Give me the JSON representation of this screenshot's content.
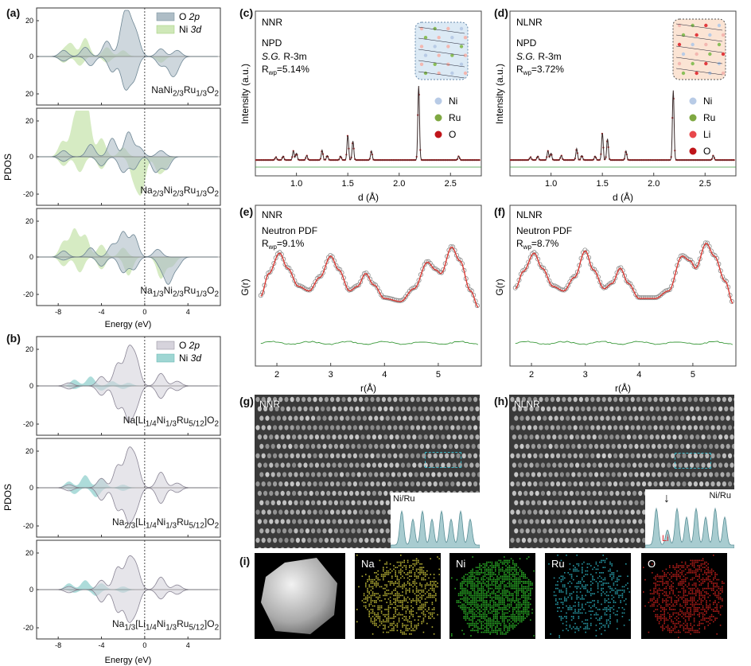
{
  "panel_labels": {
    "a": "(a)",
    "b": "(b)",
    "c": "(c)",
    "d": "(d)",
    "e": "(e)",
    "f": "(f)",
    "g": "(g)",
    "h": "(h)",
    "i": "(i)"
  },
  "pdos_a": {
    "ylabel": "PDOS",
    "xlabel": "Energy (eV)",
    "legend": [
      "O 2p",
      "Ni 3d"
    ],
    "colors": {
      "o2p": "#aebdc6",
      "ni3d": "#cfe8b8",
      "o2p_line": "#6f8795",
      "ni3d_line": "#9acb74"
    },
    "xticks": [
      "-8",
      "-4",
      "0",
      "4"
    ],
    "subpanels": [
      {
        "formula_html": "NaNi<sub>2/3</sub>Ru<sub>1/3</sub>O<sub>2</sub>",
        "yticks": [
          "20",
          "0",
          "20"
        ]
      },
      {
        "formula_html": "Na<sub>2/3</sub>Ni<sub>2/3</sub>Ru<sub>1/3</sub>O<sub>2</sub>",
        "yticks": [
          "20",
          "0",
          "-20"
        ]
      },
      {
        "formula_html": "Na<sub>1/3</sub>Ni<sub>2/3</sub>Ru<sub>1/3</sub>O<sub>2</sub>",
        "yticks": [
          "20",
          "0",
          "-20"
        ]
      }
    ]
  },
  "pdos_b": {
    "ylabel": "PDOS",
    "xlabel": "Energy (eV)",
    "legend": [
      "O 2p",
      "Ni 3d"
    ],
    "colors": {
      "o2p": "#d6d3dc",
      "ni3d": "#9fd6d3",
      "o2p_line": "#8a8595",
      "ni3d_line": "#5fb3ad"
    },
    "xticks": [
      "-8",
      "-4",
      "0",
      "4"
    ],
    "subpanels": [
      {
        "formula_html": "Na[Li<sub>1/4</sub>Ni<sub>1/3</sub>Ru<sub>5/12</sub>]O<sub>2</sub>",
        "yticks": [
          "20",
          "0",
          "-20"
        ]
      },
      {
        "formula_html": "Na<sub>2/3</sub>[Li<sub>1/4</sub>Ni<sub>1/3</sub>Ru<sub>5/12</sub>]O<sub>2</sub>",
        "yticks": [
          "20",
          "0",
          "-20"
        ]
      },
      {
        "formula_html": "Na<sub>1/3</sub>[Li<sub>1/4</sub>Ni<sub>1/3</sub>Ru<sub>5/12</sub>]O<sub>2</sub>",
        "yticks": [
          "20",
          "0",
          "-20"
        ]
      }
    ]
  },
  "npd_c": {
    "name": "NNR",
    "method": "NPD",
    "sg_label": "S.G.",
    "sg_value": " R-3m",
    "rwp_value": "=5.14%",
    "ylabel": "Intensity (a.u.)",
    "xlabel": "d (Å)",
    "xticks": [
      "1.0",
      "1.5",
      "2.0",
      "2.5"
    ],
    "legend": [
      {
        "label": "Ni",
        "color": "#b8cbe6"
      },
      {
        "label": "Ru",
        "color": "#7fa842"
      },
      {
        "label": "O",
        "color": "#c0151a"
      }
    ]
  },
  "npd_d": {
    "name": "NLNR",
    "method": "NPD",
    "sg_label": "S.G.",
    "sg_value": " R-3m",
    "rwp_value": "=3.72%",
    "ylabel": "Intensity (a.u.)",
    "xlabel": "d (Å)",
    "xticks": [
      "1.0",
      "1.5",
      "2.0",
      "2.5"
    ],
    "legend": [
      {
        "label": "Ni",
        "color": "#b8cbe6"
      },
      {
        "label": "Ru",
        "color": "#7fa842"
      },
      {
        "label": "Li",
        "color": "#e8474b"
      },
      {
        "label": "O",
        "color": "#c0151a"
      }
    ]
  },
  "pdf_e": {
    "name": "NNR",
    "method": "Neutron PDF",
    "rwp_value": "=9.1%",
    "ylabel": "G(r)",
    "xlabel": "r(Å)",
    "xticks": [
      "2",
      "3",
      "4",
      "5"
    ]
  },
  "pdf_f": {
    "name": "NLNR",
    "method": "Neutron PDF",
    "rwp_value": "=8.7%",
    "ylabel": "G(r)",
    "xlabel": "r(Å)",
    "xticks": [
      "2",
      "3",
      "4",
      "5"
    ]
  },
  "stem_g": {
    "name": "NNR",
    "profile_label": "Ni/Ru"
  },
  "stem_h": {
    "name": "NLNR",
    "profile_label": "Ni/Ru",
    "marker_label": "Li"
  },
  "eds_i": {
    "maps": [
      {
        "label": "",
        "color": ""
      },
      {
        "label": "Na",
        "color": "#c9c23a"
      },
      {
        "label": "Ni",
        "color": "#2fbf2a"
      },
      {
        "label": "Ru",
        "color": "#2aa6b4"
      },
      {
        "label": "O",
        "color": "#c4201c"
      }
    ]
  },
  "chart_data": [
    {
      "type": "area",
      "id": "a",
      "xlabel": "Energy (eV)",
      "ylabel": "PDOS",
      "xlim": [
        -10,
        7
      ],
      "series": [
        {
          "name": "O 2p"
        },
        {
          "name": "Ni 3d"
        }
      ],
      "peaks": [
        {
          "o2p_up": [
            [
              -7.5,
              4
            ],
            [
              -5.5,
              6
            ],
            [
              -3.5,
              10
            ],
            [
              -2,
              18
            ],
            [
              -1.5,
              20
            ],
            [
              -0.8,
              14
            ],
            [
              1.5,
              5
            ],
            [
              3,
              4
            ]
          ],
          "ni3d_up": [
            [
              -7.5,
              4
            ],
            [
              -6.8,
              8
            ],
            [
              -5.5,
              12
            ],
            [
              -3.5,
              6
            ],
            [
              -2,
              4
            ]
          ],
          "o2p_dn": [
            [
              -7.5,
              -3
            ],
            [
              -5,
              -6
            ],
            [
              -3,
              -10
            ],
            [
              -1.8,
              -20
            ],
            [
              -1,
              -14
            ],
            [
              1.5,
              -6
            ],
            [
              2.5,
              -10
            ],
            [
              3,
              -6
            ]
          ],
          "ni3d_dn": [
            [
              -7.5,
              -4
            ],
            [
              -6,
              -6
            ],
            [
              -3.5,
              -4
            ],
            [
              1.5,
              -4
            ]
          ]
        },
        {
          "o2p_up": [
            [
              -7.5,
              4
            ],
            [
              -5,
              8
            ],
            [
              -3,
              12
            ],
            [
              -1.5,
              16
            ],
            [
              -0.5,
              6
            ],
            [
              1.5,
              4
            ]
          ],
          "ni3d_up": [
            [
              -7.6,
              10
            ],
            [
              -6.5,
              22
            ],
            [
              -5.8,
              28
            ],
            [
              -5.3,
              26
            ],
            [
              -4,
              12
            ],
            [
              -2,
              6
            ]
          ],
          "o2p_dn": [
            [
              -7.5,
              -3
            ],
            [
              -4,
              -6
            ],
            [
              -2,
              -10
            ],
            [
              -1,
              -8
            ],
            [
              1,
              -10
            ],
            [
              2,
              -8
            ]
          ],
          "ni3d_dn": [
            [
              -7.5,
              -6
            ],
            [
              -6,
              -10
            ],
            [
              -4,
              -8
            ],
            [
              -1,
              -14
            ],
            [
              -0.3,
              -22
            ],
            [
              1.3,
              -10
            ],
            [
              2,
              -6
            ]
          ]
        },
        {
          "o2p_up": [
            [
              -7.5,
              4
            ],
            [
              -5,
              6
            ],
            [
              -3,
              8
            ],
            [
              -2,
              16
            ],
            [
              -1,
              14
            ],
            [
              1.2,
              5
            ]
          ],
          "ni3d_up": [
            [
              -7.5,
              10
            ],
            [
              -6.5,
              18
            ],
            [
              -5.5,
              14
            ],
            [
              -4,
              8
            ],
            [
              -2,
              6
            ]
          ],
          "o2p_dn": [
            [
              -7.5,
              -2
            ],
            [
              -4,
              -6
            ],
            [
              -2,
              -10
            ],
            [
              -1,
              -8
            ],
            [
              1.5,
              -6
            ],
            [
              2.2,
              -16
            ],
            [
              3,
              -6
            ]
          ],
          "ni3d_dn": [
            [
              -7.5,
              -6
            ],
            [
              -6,
              -10
            ],
            [
              -4,
              -8
            ],
            [
              -1.5,
              -12
            ],
            [
              1.5,
              -14
            ],
            [
              2.5,
              -6
            ]
          ]
        }
      ]
    },
    {
      "type": "area",
      "id": "b",
      "xlabel": "Energy (eV)",
      "ylabel": "PDOS",
      "xlim": [
        -10,
        7
      ],
      "series": [
        {
          "name": "O 2p"
        },
        {
          "name": "Ni 3d"
        }
      ],
      "peaks": [
        {
          "o2p_up": [
            [
              -7,
              2
            ],
            [
              -4,
              6
            ],
            [
              -2.5,
              14
            ],
            [
              -1.5,
              22
            ],
            [
              -0.8,
              16
            ],
            [
              1.5,
              8
            ],
            [
              3,
              3
            ]
          ],
          "ni3d_up": [
            [
              -6.5,
              4
            ],
            [
              -5,
              6
            ],
            [
              -3,
              3
            ],
            [
              -1.5,
              2
            ]
          ],
          "o2p_dn": [
            [
              -7,
              -2
            ],
            [
              -4,
              -6
            ],
            [
              -2.5,
              -14
            ],
            [
              -1.5,
              -20
            ],
            [
              -0.8,
              -12
            ],
            [
              1.5,
              -8
            ],
            [
              3,
              -3
            ]
          ],
          "ni3d_dn": [
            [
              -6.5,
              -2
            ],
            [
              -4,
              -3
            ],
            [
              -2,
              -2
            ]
          ]
        },
        {
          "o2p_up": [
            [
              -7,
              2
            ],
            [
              -4,
              6
            ],
            [
              -2.5,
              14
            ],
            [
              -1.5,
              22
            ],
            [
              -0.8,
              16
            ],
            [
              1.5,
              10
            ],
            [
              3,
              3
            ]
          ],
          "ni3d_up": [
            [
              -7,
              4
            ],
            [
              -5.5,
              8
            ],
            [
              -4,
              6
            ],
            [
              -2,
              2
            ]
          ],
          "o2p_dn": [
            [
              -7,
              -2
            ],
            [
              -4,
              -8
            ],
            [
              -2.5,
              -14
            ],
            [
              -1.5,
              -20
            ],
            [
              -0.8,
              -12
            ],
            [
              1.5,
              -10
            ],
            [
              3,
              -3
            ]
          ],
          "ni3d_dn": [
            [
              -6.5,
              -4
            ],
            [
              -4.5,
              -6
            ],
            [
              -2,
              -2
            ]
          ]
        },
        {
          "o2p_up": [
            [
              -7,
              2
            ],
            [
              -4,
              6
            ],
            [
              -2.5,
              14
            ],
            [
              -1.5,
              18
            ],
            [
              -0.8,
              14
            ],
            [
              1.5,
              8
            ],
            [
              3,
              3
            ]
          ],
          "ni3d_up": [
            [
              -7,
              4
            ],
            [
              -5.5,
              6
            ],
            [
              -4,
              4
            ],
            [
              -2,
              2
            ]
          ],
          "o2p_dn": [
            [
              -7,
              -2
            ],
            [
              -4,
              -8
            ],
            [
              -2.5,
              -14
            ],
            [
              -1.5,
              -18
            ],
            [
              -0.8,
              -12
            ],
            [
              1.5,
              -6
            ],
            [
              3,
              -3
            ]
          ],
          "ni3d_dn": [
            [
              -6.5,
              -2
            ],
            [
              -4.5,
              -4
            ],
            [
              -2,
              -2
            ]
          ]
        }
      ]
    },
    {
      "type": "line",
      "id": "c",
      "xlabel": "d (Å)",
      "ylabel": "Intensity (a.u.)",
      "xlim": [
        0.6,
        2.8
      ],
      "peaks": [
        [
          0.8,
          0.04
        ],
        [
          0.87,
          0.05
        ],
        [
          0.97,
          0.12
        ],
        [
          1.0,
          0.09
        ],
        [
          1.1,
          0.06
        ],
        [
          1.25,
          0.13
        ],
        [
          1.3,
          0.06
        ],
        [
          1.43,
          0.05
        ],
        [
          1.5,
          0.33
        ],
        [
          1.55,
          0.25
        ],
        [
          1.73,
          0.12
        ],
        [
          2.19,
          0.98
        ],
        [
          2.58,
          0.05
        ]
      ]
    },
    {
      "type": "line",
      "id": "d",
      "xlabel": "d (Å)",
      "ylabel": "Intensity (a.u.)",
      "xlim": [
        0.6,
        2.8
      ],
      "peaks": [
        [
          0.8,
          0.04
        ],
        [
          0.87,
          0.05
        ],
        [
          0.97,
          0.12
        ],
        [
          1.0,
          0.09
        ],
        [
          1.1,
          0.06
        ],
        [
          1.25,
          0.15
        ],
        [
          1.3,
          0.06
        ],
        [
          1.43,
          0.05
        ],
        [
          1.5,
          0.36
        ],
        [
          1.55,
          0.28
        ],
        [
          1.73,
          0.12
        ],
        [
          2.19,
          0.92
        ],
        [
          2.58,
          0.06
        ]
      ]
    },
    {
      "type": "line",
      "id": "e",
      "xlabel": "r(Å)",
      "ylabel": "G(r)",
      "xlim": [
        1.6,
        5.8
      ],
      "obs": [
        [
          1.7,
          0.25
        ],
        [
          1.85,
          0.55
        ],
        [
          2.05,
          0.82
        ],
        [
          2.2,
          0.62
        ],
        [
          2.4,
          0.38
        ],
        [
          2.6,
          0.32
        ],
        [
          2.8,
          0.5
        ],
        [
          3.0,
          0.78
        ],
        [
          3.15,
          0.6
        ],
        [
          3.35,
          0.32
        ],
        [
          3.5,
          0.38
        ],
        [
          3.65,
          0.55
        ],
        [
          3.8,
          0.4
        ],
        [
          4.0,
          0.22
        ],
        [
          4.3,
          0.18
        ],
        [
          4.55,
          0.35
        ],
        [
          4.8,
          0.7
        ],
        [
          4.95,
          0.6
        ],
        [
          5.05,
          0.55
        ],
        [
          5.25,
          0.9
        ],
        [
          5.4,
          0.72
        ],
        [
          5.6,
          0.32
        ],
        [
          5.75,
          0.1
        ]
      ],
      "diff_offset": -0.05
    },
    {
      "type": "line",
      "id": "f",
      "xlabel": "r(Å)",
      "ylabel": "G(r)",
      "xlim": [
        1.6,
        5.8
      ],
      "obs": [
        [
          1.7,
          0.35
        ],
        [
          1.85,
          0.58
        ],
        [
          2.05,
          0.82
        ],
        [
          2.2,
          0.62
        ],
        [
          2.4,
          0.38
        ],
        [
          2.6,
          0.32
        ],
        [
          2.8,
          0.5
        ],
        [
          3.0,
          0.85
        ],
        [
          3.15,
          0.6
        ],
        [
          3.35,
          0.35
        ],
        [
          3.5,
          0.42
        ],
        [
          3.65,
          0.62
        ],
        [
          3.8,
          0.42
        ],
        [
          4.0,
          0.22
        ],
        [
          4.3,
          0.22
        ],
        [
          4.55,
          0.32
        ],
        [
          4.8,
          0.78
        ],
        [
          4.95,
          0.72
        ],
        [
          5.05,
          0.62
        ],
        [
          5.25,
          0.95
        ],
        [
          5.4,
          0.78
        ],
        [
          5.6,
          0.45
        ],
        [
          5.75,
          0.15
        ]
      ],
      "diff_offset": -0.05
    }
  ]
}
